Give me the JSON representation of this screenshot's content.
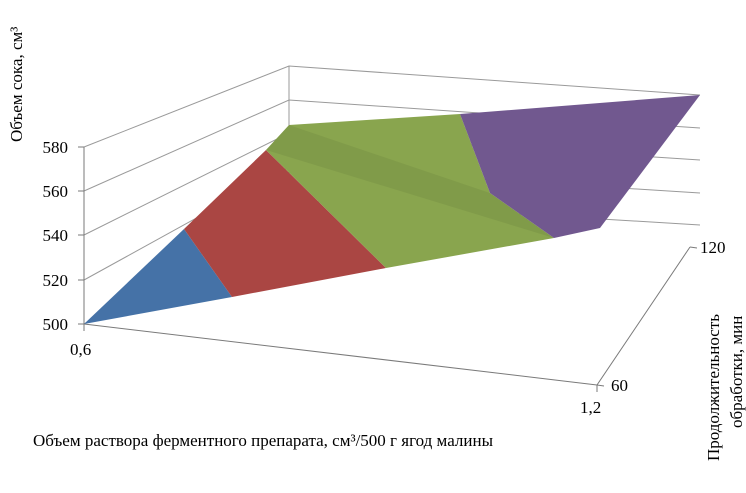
{
  "chart_data": {
    "type": "surface-3d",
    "title": "",
    "zlabel": "Объем сока, см³",
    "xlabel": "Объем раствора ферментного препарата, см³/500 г ягод малины",
    "ylabel_line1": "Продолжительность",
    "ylabel_line2": "обработки, мин",
    "z_ticks": [
      "500",
      "520",
      "540",
      "560",
      "580"
    ],
    "zlim": [
      500,
      580
    ],
    "x_ticks": [
      "0,6",
      "1,2"
    ],
    "y_ticks": [
      "60",
      "120"
    ],
    "band_colors": [
      "#4572a7",
      "#aa4643",
      "#89a54e",
      "#71588f"
    ],
    "band_ranges": [
      [
        500,
        520
      ],
      [
        520,
        540
      ],
      [
        540,
        560
      ],
      [
        560,
        580
      ]
    ],
    "grid": true,
    "legend": "none"
  }
}
